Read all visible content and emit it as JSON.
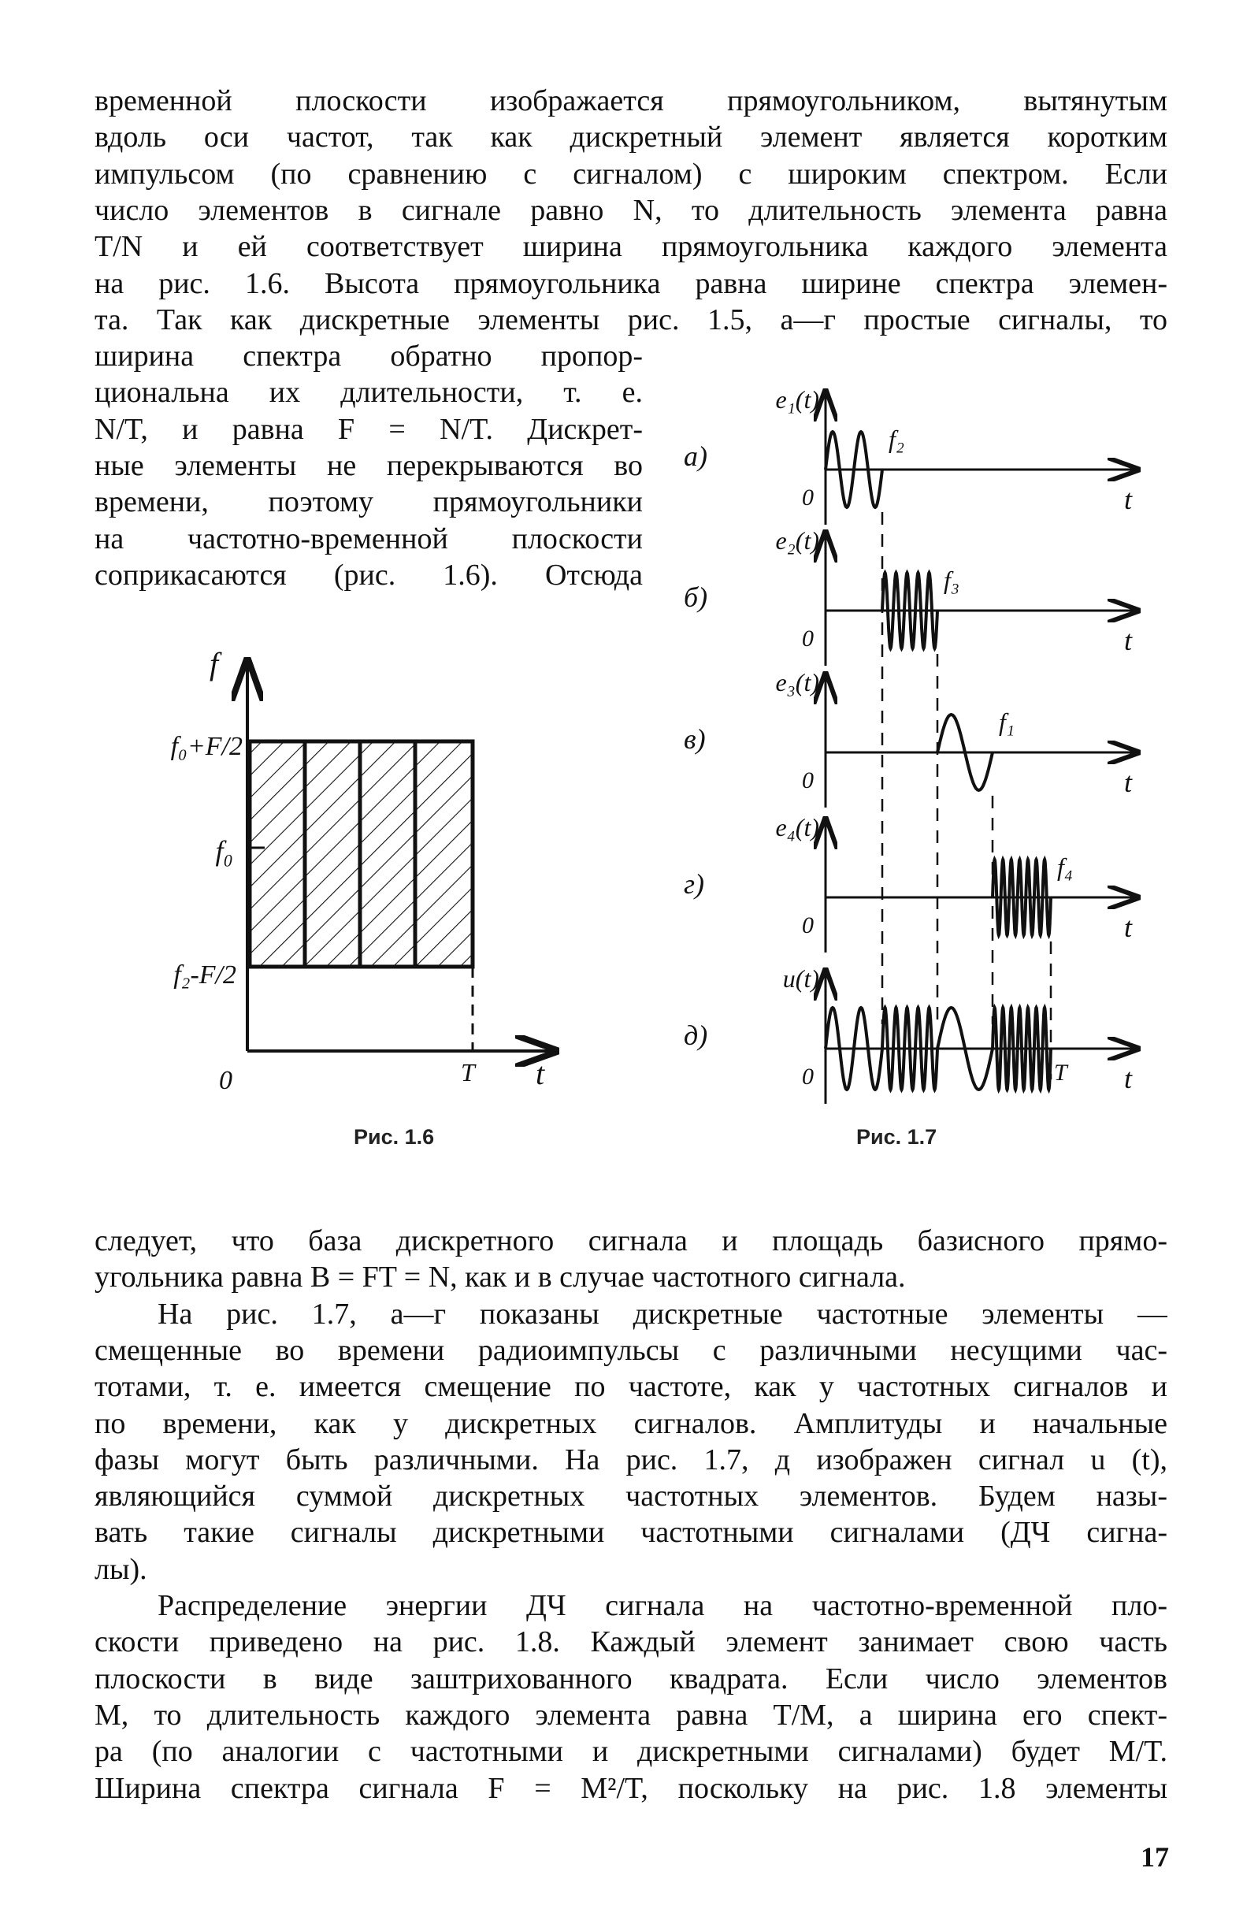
{
  "top_lines": [
    "временной плоскости изображается прямоугольником, вытянутым",
    "вдоль оси частот, так как дискретный элемент является коротким",
    "импульсом (по сравнению с сигналом) с широким спектром. Если",
    "число элементов в сигнале равно N, то длительность элемента равна",
    "T/N и ей соответствует ширина прямоугольника каждого элемента",
    "на рис. 1.6. Высота прямоугольника равна ширине спектра элемен-",
    "та. Так как дискретные элементы рис. 1.5, а—г простые сигналы, то"
  ],
  "narrow_lines": [
    "ширина спектра обратно пропор-",
    "циональна их длительности, т. е.",
    "N/T, и равна F = N/T. Дискрет-",
    "ные элементы не перекрываются во",
    "времени, поэтому прямоугольники",
    "на частотно-временной плоскости",
    "соприкасаются (рис. 1.6). Отсюда"
  ],
  "bottom_lines": [
    "следует, что база дискретного сигнала и площадь базисного прямо-",
    "угольника равна B = FT = N, как и в случае частотного сигнала.",
    "На рис. 1.7, а—г показаны дискретные частотные элементы —",
    "смещенные во времени радиоимпульсы с различными несущими час-",
    "тотами, т. е. имеется смещение по частоте, как у частотных сигналов и",
    "по времени, как у дискретных сигналов. Амплитуды и начальные",
    "фазы могут быть различными. На рис. 1.7, д изображен сигнал u (t),",
    "являющийся суммой дискретных частотных элементов. Будем назы-",
    "вать такие сигналы дискретными частотными сигналами (ДЧ сигна-",
    "лы).",
    "Распределение энергии ДЧ сигнала на частотно-временной пло-",
    "скости приведено на рис. 1.8. Каждый элемент занимает свою часть",
    "плоскости в виде заштрихованного квадрата. Если число элементов",
    "M, то длительность каждого элемента равна T/M, а ширина его спект-",
    "ра (по аналогии с частотными и дискретными сигналами) будет M/T.",
    "Ширина спектра сигнала F = M²/T, поскольку на рис. 1.8 элементы"
  ],
  "page_number": "17",
  "fig16": {
    "caption": "Рис. 1.6",
    "y_axis": "f",
    "x_axis": "t",
    "origin": "0",
    "t_end": "T",
    "top_label": "f₀+F/2",
    "mid_label": "f₀",
    "bottom_label": "f₂-F/2",
    "elements": 4
  },
  "fig17": {
    "caption": "Рис. 1.7",
    "x_axis": "t",
    "origin": "0",
    "t_end": "T",
    "rows": [
      {
        "letter": "а)",
        "signal": "e₁(t)",
        "freq": "f₂",
        "cycles": 2,
        "slot": 0
      },
      {
        "letter": "б)",
        "signal": "e₂(t)",
        "freq": "f₃",
        "cycles": 5,
        "slot": 1
      },
      {
        "letter": "в)",
        "signal": "e₃(t)",
        "freq": "f₁",
        "cycles": 1,
        "slot": 2
      },
      {
        "letter": "г)",
        "signal": "e₄(t)",
        "freq": "f₄",
        "cycles": 7,
        "slot": 3
      },
      {
        "letter": "д)",
        "signal": "u(t)",
        "freq": "",
        "cycles": 0,
        "slot": -1
      }
    ]
  }
}
